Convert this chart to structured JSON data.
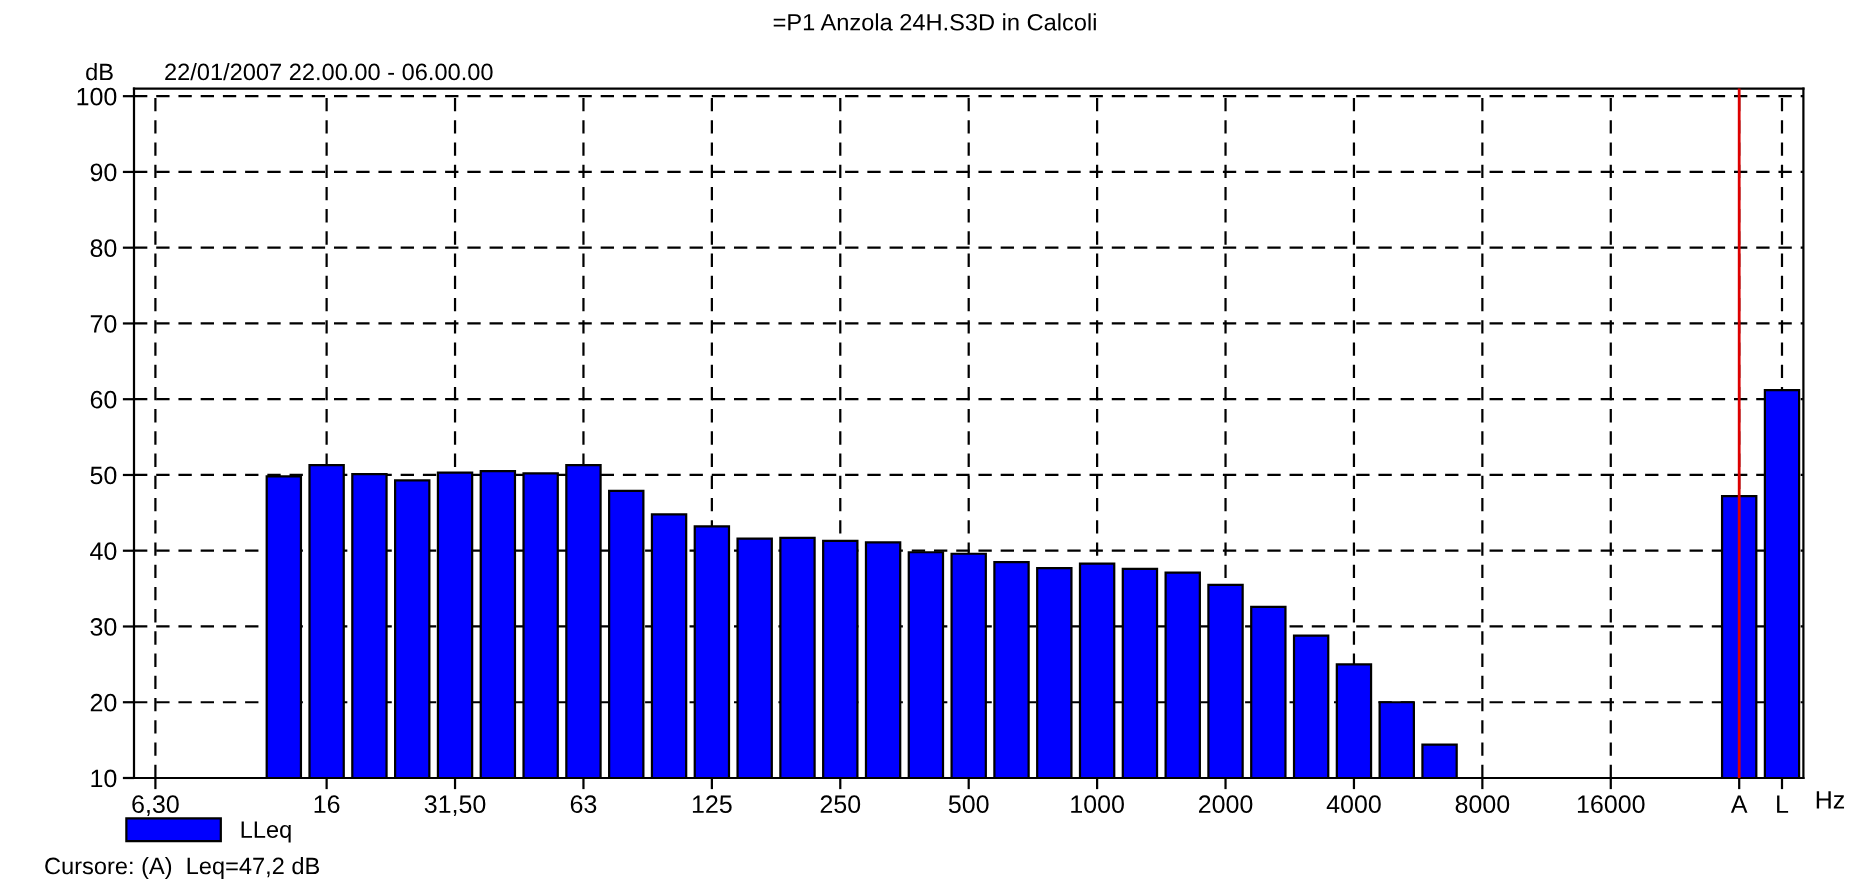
{
  "chart_data": {
    "type": "bar",
    "title": "=P1 Anzola 24H.S3D in Calcoli",
    "subtitle": "22/01/2007 22.00.00 - 06.00.00",
    "ylabel": "dB",
    "xlabel": "Hz",
    "categories": [
      "6,30",
      null,
      null,
      null,
      "16",
      null,
      null,
      "31,50",
      null,
      null,
      "63",
      null,
      null,
      "125",
      null,
      null,
      "250",
      null,
      null,
      "500",
      null,
      null,
      "1000",
      null,
      null,
      "2000",
      null,
      null,
      "4000",
      null,
      null,
      "8000",
      null,
      null,
      "16000",
      null,
      null,
      "A",
      "L"
    ],
    "series": [
      {
        "name": "LLeq",
        "color": "#0000ff",
        "values": [
          null,
          null,
          null,
          49.8,
          51.3,
          50.1,
          49.3,
          50.3,
          50.5,
          50.2,
          51.3,
          47.9,
          44.8,
          43.2,
          41.6,
          41.7,
          41.3,
          41.1,
          39.8,
          39.6,
          38.5,
          37.7,
          38.3,
          37.6,
          37.1,
          35.5,
          32.6,
          28.8,
          25.0,
          20.0,
          14.4,
          null,
          null,
          null,
          null,
          null,
          null,
          47.2,
          61.2
        ]
      }
    ],
    "ylim": [
      10,
      101
    ],
    "yticks": [
      10,
      20,
      30,
      40,
      50,
      60,
      70,
      80,
      90,
      100
    ],
    "grid": true,
    "legend": "bottom left",
    "ref_lines": [
      {
        "axis": "x",
        "value": "A",
        "color": "#dd0000"
      }
    ],
    "annotations": [
      "Cursore: (A)  Leq=47,2 dB"
    ]
  }
}
